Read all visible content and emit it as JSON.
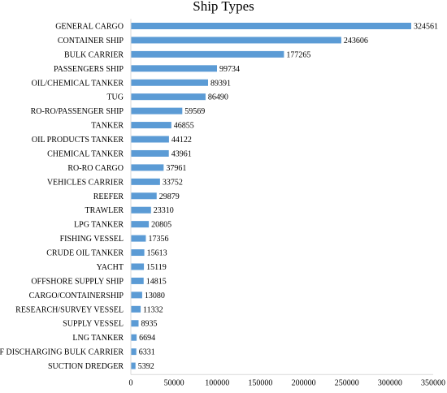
{
  "colors": {
    "bar": "#5b9bd5",
    "axis": "#d9d9d9",
    "text": "#000000"
  },
  "chart_data": {
    "type": "bar",
    "orientation": "horizontal",
    "title": "Ship Types",
    "xlabel": "",
    "ylabel": "",
    "xlim": [
      0,
      350000
    ],
    "x_ticks": [
      0,
      50000,
      100000,
      150000,
      200000,
      250000,
      300000,
      350000
    ],
    "grid": false,
    "data_labels": true,
    "categories": [
      "GENERAL CARGO",
      "CONTAINER SHIP",
      "BULK CARRIER",
      "PASSENGERS SHIP",
      "OIL/CHEMICAL TANKER",
      "TUG",
      "RO-RO/PASSENGER SHIP",
      "TANKER",
      "OIL PRODUCTS TANKER",
      "CHEMICAL TANKER",
      "RO-RO CARGO",
      "VEHICLES CARRIER",
      "REEFER",
      "TRAWLER",
      "LPG TANKER",
      "FISHING VESSEL",
      "CRUDE OIL TANKER",
      "YACHT",
      "OFFSHORE SUPPLY SHIP",
      "CARGO/CONTAINERSHIP",
      "RESEARCH/SURVEY VESSEL",
      "SUPPLY VESSEL",
      "LNG TANKER",
      "SELF DISCHARGING BULK CARRIER",
      "SUCTION DREDGER"
    ],
    "values": [
      324561,
      243606,
      177265,
      99734,
      89391,
      86490,
      59569,
      46855,
      44122,
      43961,
      37961,
      33752,
      29879,
      23310,
      20805,
      17356,
      15613,
      15119,
      14815,
      13080,
      11332,
      8935,
      6694,
      6331,
      5392
    ]
  }
}
